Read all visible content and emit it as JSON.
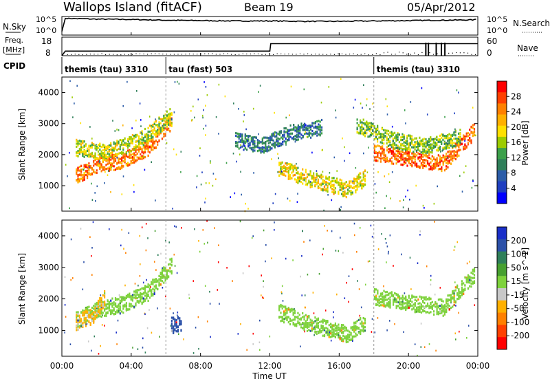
{
  "header": {
    "site": "Wallops Island (fitACF)",
    "beam": "Beam 19",
    "date": "05/Apr/2012"
  },
  "left_labels": {
    "nsky": "N.Sky",
    "nsky_top": "10^5",
    "nsky_bottom": "10^0",
    "freq": "Freq.",
    "freq_unit": "[MHz]",
    "freq_top": "18",
    "freq_bottom": "8",
    "cpid": "CPID"
  },
  "right_labels": {
    "nsearch": "N.Search",
    "nsearch_top": "10^5",
    "nsearch_bottom": "10^0",
    "nave": "Nave",
    "nave_top": "60",
    "nave_bottom": "0"
  },
  "cpid_segments": [
    {
      "label": "themis (tau) 3310",
      "start_hour": 0
    },
    {
      "label": "tau (fast) 503",
      "start_hour": 6
    },
    {
      "label": "themis (tau) 3310",
      "start_hour": 18
    }
  ],
  "axes": {
    "xlabel": "Time UT",
    "ylabel": "Slant Range [km]",
    "xticks": [
      "00:00",
      "04:00",
      "08:00",
      "12:00",
      "16:00",
      "20:00",
      "00:00"
    ],
    "yticks": [
      "1000",
      "2000",
      "3000",
      "4000"
    ]
  },
  "colorbars": {
    "power": {
      "label": "Power [dB]",
      "ticks": [
        "28",
        "24",
        "20",
        "16",
        "12",
        "8",
        "4"
      ],
      "colors": [
        "#ff0000",
        "#ff4000",
        "#ff8000",
        "#ffb000",
        "#ffe000",
        "#9ccc00",
        "#3ca04a",
        "#2f7f5a",
        "#2b5ca8",
        "#1f3fc0",
        "#0000ff"
      ]
    },
    "velocity": {
      "label": "Velocity [m s^-1]",
      "ticks": [
        "200",
        "100",
        "50",
        "15",
        "-15",
        "-50",
        "-100",
        "-200"
      ],
      "colors": [
        "#1a2fc8",
        "#2b50a8",
        "#2f7f5a",
        "#47a030",
        "#7ed23c",
        "#c8c8c8",
        "#ffb000",
        "#ff8000",
        "#ff4000",
        "#ff0000"
      ]
    }
  },
  "chart_data": [
    {
      "type": "line",
      "title": "N.Sky / N.Search",
      "x": [
        0,
        0.2,
        2,
        4,
        6,
        8,
        10,
        12,
        14,
        16,
        18,
        20,
        22,
        23.8,
        24
      ],
      "series": [
        {
          "name": "N.Sky",
          "values": [
            1,
            4.5,
            4.3,
            4.2,
            4.0,
            3.9,
            3.8,
            3.8,
            3.7,
            3.7,
            3.8,
            3.9,
            4.0,
            4.1,
            4.5
          ]
        }
      ],
      "ylim": [
        0,
        5
      ]
    },
    {
      "type": "line",
      "title": "Freq. / Nave",
      "x": [
        0,
        0.2,
        12,
        12.05,
        24
      ],
      "series": [
        {
          "name": "Freq.",
          "values": [
            8,
            10.5,
            10.5,
            14.5,
            14.5
          ]
        }
      ],
      "ylim": [
        8,
        18
      ]
    },
    {
      "type": "heatmap",
      "title": "Power [dB]",
      "xlim": [
        0,
        24
      ],
      "ylim": [
        180,
        4500
      ],
      "bands": [
        {
          "x": [
            0.8,
            2.0,
            3.5,
            5.0,
            6.3
          ],
          "y": [
            1350,
            1700,
            1850,
            2250,
            3100
          ],
          "value": 26
        },
        {
          "x": [
            0.8,
            2.5,
            4.5,
            6.3
          ],
          "y": [
            2250,
            2100,
            2500,
            3300
          ],
          "value": 18
        },
        {
          "x": [
            12.5,
            14.5,
            16.5,
            17.5
          ],
          "y": [
            1600,
            1200,
            900,
            1300
          ],
          "value": 20
        },
        {
          "x": [
            18.0,
            20.0,
            22.0,
            23.8
          ],
          "y": [
            2100,
            1900,
            1750,
            2800
          ],
          "value": 27
        },
        {
          "x": [
            17.0,
            19.0,
            21.0,
            23.0
          ],
          "y": [
            3000,
            2500,
            2300,
            2600
          ],
          "value": 16
        },
        {
          "x": [
            10.0,
            11.5,
            13.0,
            15.0
          ],
          "y": [
            2500,
            2300,
            2700,
            2900
          ],
          "value": 10
        }
      ]
    },
    {
      "type": "heatmap",
      "title": "Velocity [m s^-1]",
      "xlim": [
        0,
        24
      ],
      "ylim": [
        180,
        4500
      ],
      "bands": [
        {
          "x": [
            0.8,
            2.0,
            3.5,
            5.0,
            6.3
          ],
          "y": [
            1350,
            1700,
            1850,
            2250,
            3100
          ],
          "value": 0
        },
        {
          "x": [
            0.8,
            1.8,
            2.5
          ],
          "y": [
            1300,
            1500,
            2100
          ],
          "value": -60
        },
        {
          "x": [
            12.5,
            14.5,
            16.5,
            17.5
          ],
          "y": [
            1600,
            1200,
            900,
            1300
          ],
          "value": 0
        },
        {
          "x": [
            18.0,
            20.0,
            22.0,
            23.8
          ],
          "y": [
            2100,
            1900,
            1750,
            2800
          ],
          "value": 0
        },
        {
          "x": [
            6.3,
            6.9
          ],
          "y": [
            1200,
            1200
          ],
          "value": 150
        }
      ]
    }
  ]
}
